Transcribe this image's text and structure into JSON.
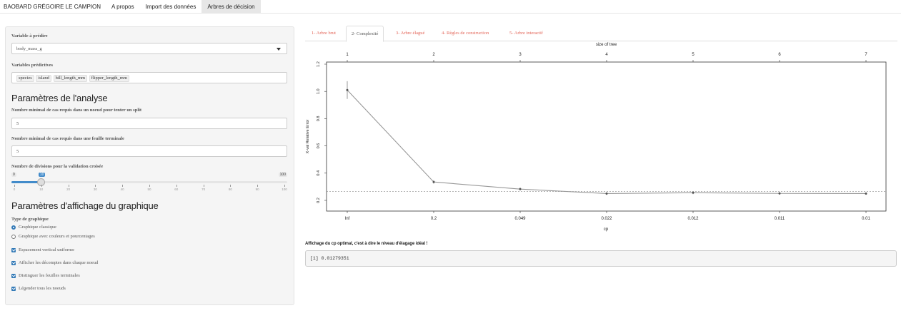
{
  "navbar": {
    "brand": "BAOBARD GRÉGOIRE LE CAMPION",
    "items": [
      {
        "label": "A propos",
        "active": false
      },
      {
        "label": "Import des données",
        "active": false
      },
      {
        "label": "Arbres de décision",
        "active": true
      }
    ]
  },
  "sidebar": {
    "target_label": "Variable à prédire",
    "target_value": "body_mass_g",
    "predictors_label": "Variables prédictives",
    "predictors": [
      "species",
      "island",
      "bill_length_mm",
      "flipper_length_mm"
    ],
    "analysis_title": "Paramètres de l'analyse",
    "minsplit_label": "Nombre minimal de cas requis dans un noeud pour tenter un split",
    "minsplit_value": "5",
    "minbucket_label": "Nombre minimal de cas requis dans une feuille terminale",
    "minbucket_value": "5",
    "xval_label": "Nombre de divisions pour la validation croisée",
    "slider": {
      "min": 0,
      "max": 100,
      "value": 10,
      "min_label": "0",
      "max_label": "100",
      "value_label": "10",
      "ticks": [
        "0",
        "10",
        "20",
        "30",
        "40",
        "50",
        "60",
        "70",
        "80",
        "90",
        "100"
      ]
    },
    "display_title": "Paramètres d'affichage du graphique",
    "graph_type_label": "Type de graphique",
    "radios": [
      {
        "label": "Graphique classique",
        "checked": true
      },
      {
        "label": "Graphique avec couleurs et pourcentages",
        "checked": false
      }
    ],
    "checkboxes": [
      {
        "label": "Espacement vertical uniforme",
        "checked": true
      },
      {
        "label": "Afficher les décomptes dans chaque noeud",
        "checked": true
      },
      {
        "label": "Distinguer les feuilles terminales",
        "checked": true
      },
      {
        "label": "Légender tous les noeuds",
        "checked": true
      }
    ]
  },
  "main": {
    "tabs": [
      {
        "label": "1- Arbre brut",
        "active": false
      },
      {
        "label": "2- Complexité",
        "active": true
      },
      {
        "label": "3- Arbre élagué",
        "active": false
      },
      {
        "label": "4- Règles de construction",
        "active": false
      },
      {
        "label": "5- Arbre interactif",
        "active": false
      }
    ],
    "cp_title": "Affichage du cp optimal, c'est à dire le niveau d'élagage idéal !",
    "cp_output": "[1] 0.01279351"
  },
  "chart_data": {
    "type": "line",
    "xlabel": "cp",
    "ylabel": "X-val Relative Error",
    "top_axis_label": "size of tree",
    "x": [
      "Inf",
      "0.2",
      "0.049",
      "0.022",
      "0.012",
      "0.011",
      "0.01"
    ],
    "size_of_tree": [
      "1",
      "2",
      "3",
      "4",
      "5",
      "6",
      "7"
    ],
    "series": [
      {
        "values": [
          1.01,
          0.335,
          0.283,
          0.25,
          0.256,
          0.251,
          0.25
        ],
        "error_bars": [
          0.065,
          0.012,
          0.01,
          0.01,
          0.01,
          0.009,
          0.009
        ]
      }
    ],
    "reference_line": 0.265,
    "y_ticks": [
      "0.2",
      "0.4",
      "0.6",
      "0.8",
      "1.0",
      "1.2"
    ],
    "ylim": [
      0.2,
      1.2
    ],
    "grid": false,
    "colors": {
      "line": "#999999",
      "points": "#555555",
      "reference": "#888888"
    }
  }
}
